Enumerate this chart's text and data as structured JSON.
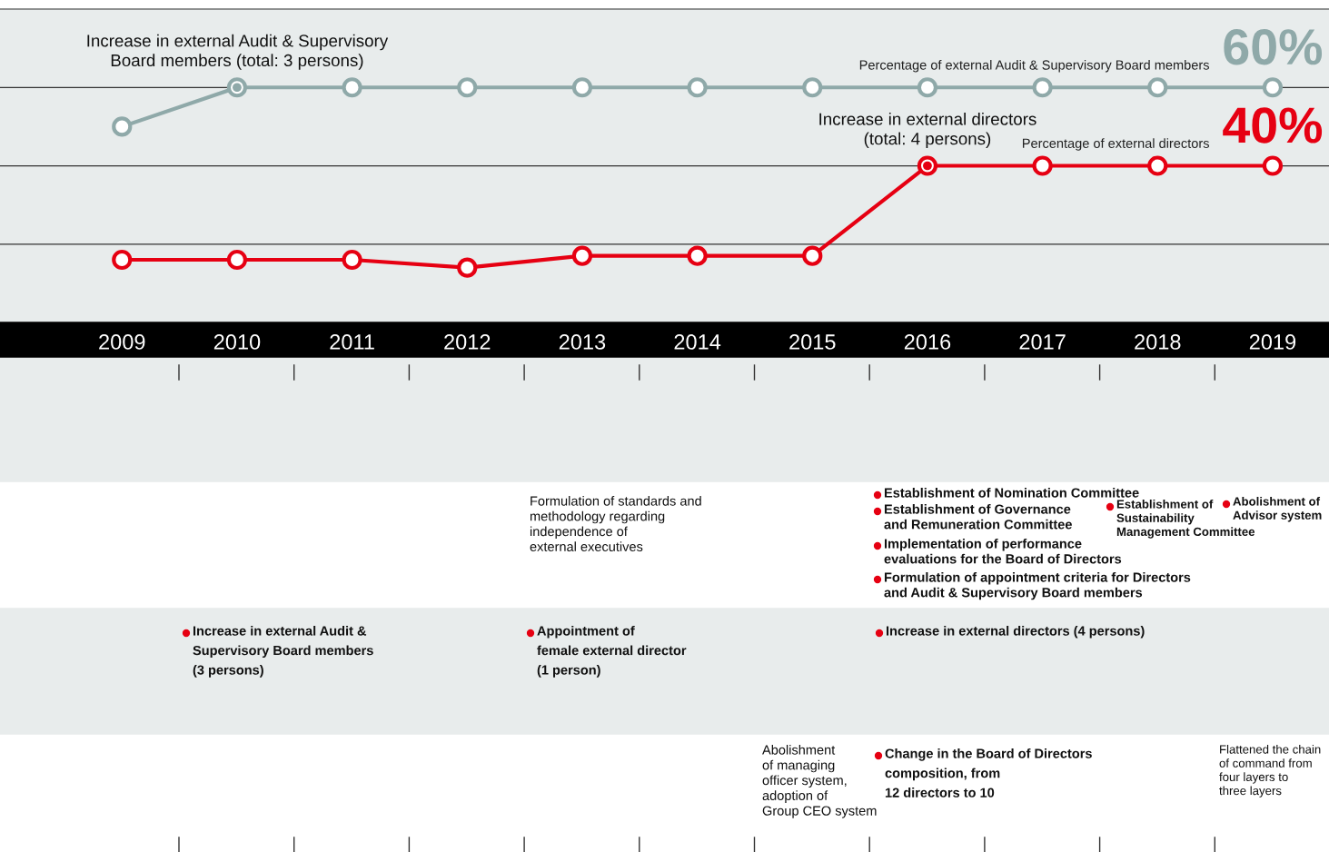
{
  "chart_data": {
    "type": "line",
    "x": [
      2009,
      2010,
      2011,
      2012,
      2013,
      2014,
      2015,
      2016,
      2017,
      2018,
      2019
    ],
    "xlim": [
      2007.94,
      2019.49
    ],
    "xticks": [
      2009,
      2010,
      2011,
      2012,
      2013,
      2014,
      2015,
      2016,
      2017,
      2018,
      2019
    ],
    "ylim": [
      0,
      80
    ],
    "yticks": [
      {
        "value": 20,
        "label": null
      },
      {
        "value": 40,
        "label": null
      },
      {
        "value": 60,
        "label": null
      }
    ],
    "tick_labels": "x",
    "grid": "y",
    "marker": "circle",
    "line_style": "solid",
    "legend": false,
    "series": [
      {
        "name": "Percentage of external Audit & Supervisory Board members",
        "color": "#8fa9a9",
        "values": [
          50,
          60,
          60,
          60,
          60,
          60,
          60,
          60,
          60,
          60,
          60
        ],
        "value_labels": [
          null,
          null,
          null,
          null,
          null,
          null,
          null,
          null,
          null,
          null,
          "60%"
        ]
      },
      {
        "name": "Percentage of external directors",
        "color": "#e60012",
        "values": [
          16,
          16,
          16,
          14,
          17,
          17,
          17,
          40,
          40,
          40,
          40
        ],
        "value_labels": [
          null,
          null,
          null,
          null,
          null,
          null,
          null,
          null,
          null,
          null,
          "40%"
        ]
      }
    ],
    "annotations": [
      {
        "text": "Increase in external Audit & Supervisory\nBoard members (total: 3 persons)",
        "x": 2010,
        "y": 60
      },
      {
        "text": "Increase in external directors\n(total: 4 persons)",
        "x": 2016,
        "y": 40
      },
      "Formulation of standards and\nmethodology regarding\nindependence of\nexternal executives",
      "Establishment of Nomination Committee",
      "Establishment of Governance\nand Remuneration Committee",
      "Implementation of performance\nevaluations for the Board of Directors",
      "Formulation of appointment criteria for Directors\nand Audit & Supervisory Board members",
      "Establishment of\nSustainability\nManagement Committee",
      "Abolishment of\nAdvisor system",
      "Increase in external Audit &\nSupervisory Board members\n(3 persons)",
      "Appointment of\nfemale external director\n(1 person)",
      "Increase in external directors (4 persons)",
      "Abolishment\nof managing\nofficer system,\nadoption of\nGroup CEO system",
      "Change in the Board of Directors\ncomposition, from\n12 directors to 10",
      "Flattened the chain\nof command from\nfour layers to\nthree layers"
    ]
  }
}
